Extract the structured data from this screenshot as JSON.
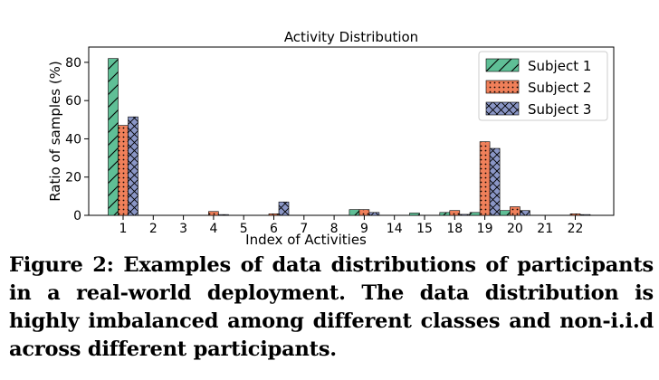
{
  "chart_data": {
    "type": "bar",
    "title": "Activity Distribution",
    "xlabel": "Index of Activities",
    "ylabel": "Ratio of samples (%)",
    "ylim": [
      0,
      88
    ],
    "yticks": [
      0,
      20,
      40,
      60,
      80
    ],
    "grid": false,
    "legend_position": "top-right",
    "categories": [
      "1",
      "2",
      "3",
      "4",
      "5",
      "6",
      "7",
      "8",
      "9",
      "14",
      "15",
      "18",
      "19",
      "20",
      "21",
      "22"
    ],
    "series": [
      {
        "name": "Subject 1",
        "color": "#5fbf96",
        "hatch": "diagonal",
        "values": [
          82,
          0,
          0,
          0,
          0,
          0,
          0,
          0,
          3,
          0,
          1.2,
          1.5,
          1.5,
          2.5,
          0,
          0
        ]
      },
      {
        "name": "Subject 2",
        "color": "#f0805a",
        "hatch": "dots",
        "values": [
          47,
          0,
          0,
          2,
          0,
          0.8,
          0,
          0,
          3,
          0,
          0,
          2.5,
          38.5,
          4.5,
          0,
          0.8
        ]
      },
      {
        "name": "Subject 3",
        "color": "#8a96c6",
        "hatch": "crosshatch",
        "values": [
          51.5,
          0,
          0,
          0.4,
          0,
          7,
          0,
          0,
          1.5,
          0,
          0,
          0.5,
          35,
          2.5,
          0,
          0.4
        ]
      }
    ]
  },
  "caption": "Figure 2: Examples of data distributions of participants in a real-world deployment. The data distribution is highly imbalanced among different classes and non-i.i.d across different participants."
}
